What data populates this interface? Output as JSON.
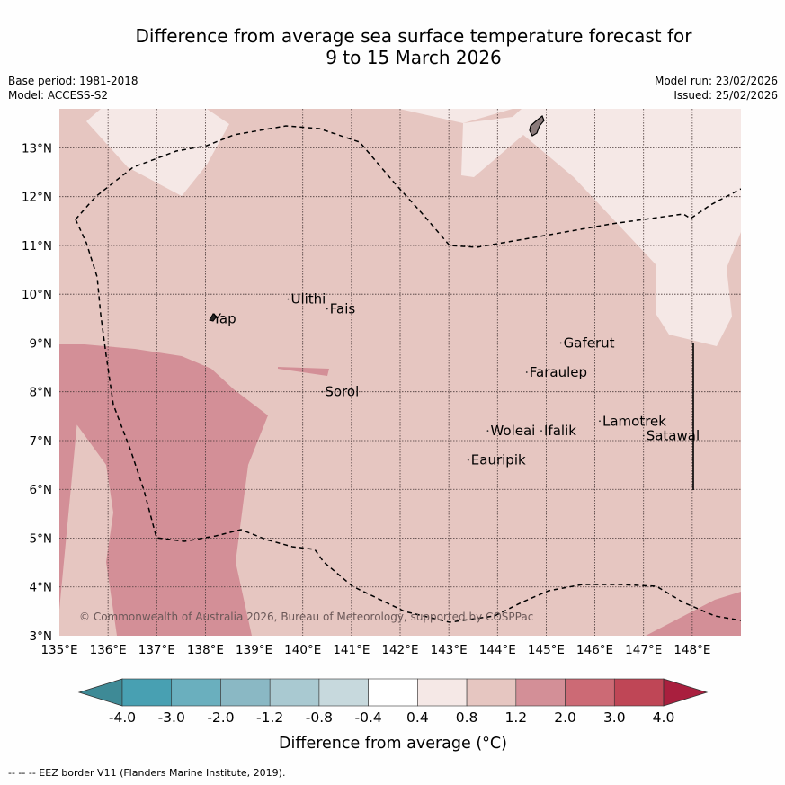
{
  "title_line1": "Difference from average sea surface temperature forecast for",
  "title_line2": "9 to 15 March 2026",
  "base_period": "Base period: 1981-2018",
  "model": "Model: ACCESS-S2",
  "model_run": "Model run: 23/02/2026",
  "issued": "Issued: 25/02/2026",
  "copyright": "© Commonwealth of Australia 2026, Bureau of Meteorology, supported by COSPPac",
  "footnote": "--  --  -- EEZ border V11 (Flanders Marine Institute, 2019).",
  "colorbar_label": "Difference from average (°C)",
  "colors": {
    "bins": [
      "#3e8a96",
      "#48a0b2",
      "#6aafbe",
      "#8ab8c4",
      "#a9c9d1",
      "#c7d9dd",
      "#ffffff",
      "#f5e8e6",
      "#e6c6c1",
      "#d38f97",
      "#cc6a75",
      "#bf4656",
      "#a91f3e"
    ],
    "pale": "#f5e8e6",
    "mid": "#e6c6c1",
    "warm": "#d38f97"
  },
  "chart_data": {
    "type": "heatmap",
    "x_range_lon": [
      135,
      149
    ],
    "y_range_lat": [
      3,
      13.8
    ],
    "x_ticks": [
      "135°E",
      "136°E",
      "137°E",
      "138°E",
      "139°E",
      "140°E",
      "141°E",
      "142°E",
      "143°E",
      "144°E",
      "145°E",
      "146°E",
      "147°E",
      "148°E"
    ],
    "y_ticks": [
      "3°N",
      "4°N",
      "5°N",
      "6°N",
      "7°N",
      "8°N",
      "9°N",
      "10°N",
      "11°N",
      "12°N",
      "13°N"
    ],
    "colorbar_ticks": [
      "-4.0",
      "-3.0",
      "-2.0",
      "-1.2",
      "-0.8",
      "-0.4",
      "0.4",
      "0.8",
      "1.2",
      "2.0",
      "3.0",
      "4.0"
    ],
    "places": [
      {
        "name": "Ulithi",
        "lon": 139.7,
        "lat": 9.9
      },
      {
        "name": "Fais",
        "lon": 140.5,
        "lat": 9.7
      },
      {
        "name": "Yap",
        "lon": 138.1,
        "lat": 9.5
      },
      {
        "name": "Gaferut",
        "lon": 145.3,
        "lat": 9.0
      },
      {
        "name": "Faraulep",
        "lon": 144.6,
        "lat": 8.4
      },
      {
        "name": "Sorol",
        "lon": 140.4,
        "lat": 8.0
      },
      {
        "name": "Lamotrek",
        "lon": 146.1,
        "lat": 7.4
      },
      {
        "name": "Woleai",
        "lon": 143.8,
        "lat": 7.2
      },
      {
        "name": "Ifalik",
        "lon": 144.9,
        "lat": 7.2
      },
      {
        "name": "Satawal",
        "lon": 147.0,
        "lat": 7.1
      },
      {
        "name": "Eauripik",
        "lon": 143.4,
        "lat": 6.6
      }
    ]
  }
}
